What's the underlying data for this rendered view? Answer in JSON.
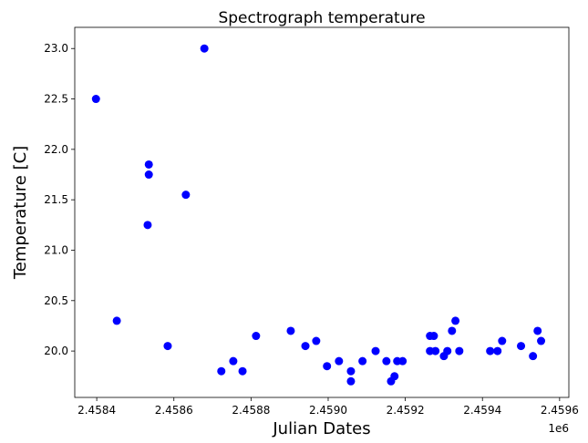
{
  "chart_data": {
    "type": "scatter",
    "title": "Spectrograph temperature",
    "x_label": "Julian Dates",
    "y_label": "Temperature [C]",
    "x_offset_label": "1e6",
    "series": [
      {
        "color": "#0000ff",
        "x": [
          2458398,
          2458452,
          2458535,
          2458535,
          2458532,
          2458584,
          2458631,
          2458679,
          2458723,
          2458754,
          2458778,
          2458813,
          2458903,
          2458941,
          2458969,
          2458997,
          2459028,
          2459059,
          2459059,
          2459089,
          2459123,
          2459151,
          2459163,
          2459172,
          2459179,
          2459193,
          2459264,
          2459274,
          2459264,
          2459278,
          2459300,
          2459309,
          2459321,
          2459330,
          2459340,
          2459420,
          2459439,
          2459451,
          2459500,
          2459531,
          2459543,
          2459552
        ],
        "values": [
          22.5,
          20.3,
          21.85,
          21.75,
          21.25,
          20.05,
          21.55,
          23.0,
          19.8,
          19.9,
          19.8,
          20.15,
          20.2,
          20.05,
          20.1,
          19.85,
          19.9,
          19.8,
          19.7,
          19.9,
          20.0,
          19.9,
          19.7,
          19.75,
          19.9,
          19.9,
          20.15,
          20.15,
          20.0,
          20.0,
          19.95,
          20.0,
          20.2,
          20.3,
          20.0,
          20.0,
          20.0,
          20.1,
          20.05,
          19.95,
          20.2,
          20.1
        ]
      }
    ],
    "xlim": [
      2458343,
      2459624
    ],
    "xticks": [
      {
        "value": 2458400,
        "label": "2.4584"
      },
      {
        "value": 2458600,
        "label": "2.4586"
      },
      {
        "value": 2458800,
        "label": "2.4588"
      },
      {
        "value": 2459000,
        "label": "2.4590"
      },
      {
        "value": 2459200,
        "label": "2.4592"
      },
      {
        "value": 2459400,
        "label": "2.4594"
      },
      {
        "value": 2459600,
        "label": "2.4596"
      }
    ],
    "ylim": [
      19.54,
      23.21
    ],
    "yticks": [
      {
        "value": 20,
        "label": "20.0"
      },
      20.5,
      {
        "value": 21,
        "label": "21.0"
      },
      21.5,
      {
        "value": 22,
        "label": "22.0"
      },
      22.5,
      {
        "value": 23,
        "label": "23.0"
      }
    ],
    "grid": false
  }
}
